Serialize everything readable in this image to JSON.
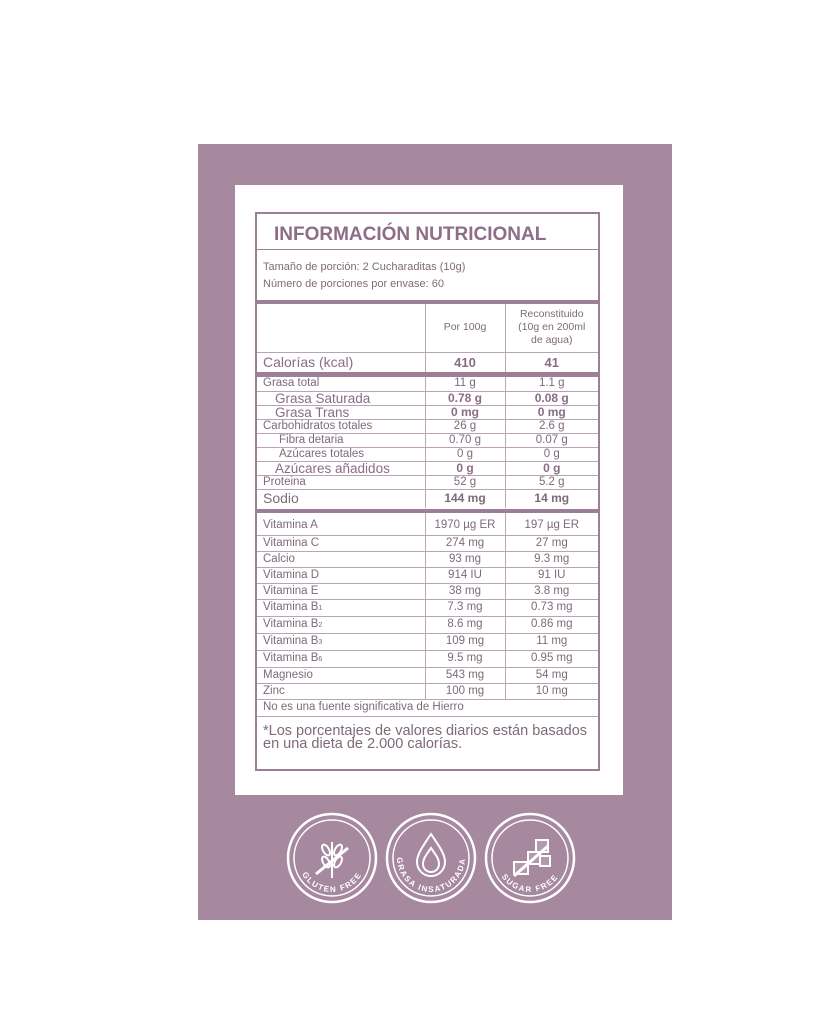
{
  "title": "INFORMACIÓN NUTRICIONAL",
  "serving_size": "Tamaño de porción: 2 Cucharaditas (10g)",
  "servings_per_container": "Número de porciones por envase: 60",
  "columns": {
    "per100": "Por 100g",
    "reconstituted": "Reconstituido (10g en 200ml de agua)"
  },
  "calories": {
    "label": "Calorías (kcal)",
    "per100": "410",
    "reconstituted": "41"
  },
  "nutrients": [
    {
      "label": "Grasa total",
      "per100": "11 g",
      "reconstituted": "1.1 g"
    },
    {
      "label": "Grasa Saturada",
      "per100": "0.78 g",
      "reconstituted": "0.08 g"
    },
    {
      "label": "Grasa Trans",
      "per100": "0 mg",
      "reconstituted": "0 mg"
    },
    {
      "label": "Carbohidratos totales",
      "per100": "26 g",
      "reconstituted": "2.6 g"
    },
    {
      "label": "Fibra detaria",
      "per100": "0.70 g",
      "reconstituted": "0.07 g"
    },
    {
      "label": "Azúcares totales",
      "per100": "0 g",
      "reconstituted": "0 g"
    },
    {
      "label": "Azúcares añadidos",
      "per100": "0 g",
      "reconstituted": "0 g"
    },
    {
      "label": "Proteina",
      "per100": "52 g",
      "reconstituted": "5.2 g"
    },
    {
      "label": "Sodio",
      "per100": "144 mg",
      "reconstituted": "14 mg"
    }
  ],
  "vitamins": [
    {
      "label": "Vitamina A",
      "per100": "1970 µg ER",
      "reconstituted": "197 µg ER"
    },
    {
      "label": "Vitamina C",
      "per100": "274 mg",
      "reconstituted": "27 mg"
    },
    {
      "label": "Calcio",
      "per100": "93 mg",
      "reconstituted": "9.3 mg"
    },
    {
      "label": "Vitamina D",
      "per100": "914 IU",
      "reconstituted": "91 IU"
    },
    {
      "label": "Vitamina E",
      "per100": "38 mg",
      "reconstituted": "3.8 mg"
    },
    {
      "label": "Vitamina B",
      "sub": "1",
      "per100": "7.3 mg",
      "reconstituted": "0.73 mg"
    },
    {
      "label": "Vitamina B",
      "sub": "2",
      "per100": "8.6 mg",
      "reconstituted": "0.86 mg"
    },
    {
      "label": "Vitamina B",
      "sub": "3",
      "per100": "109 mg",
      "reconstituted": "11 mg"
    },
    {
      "label": "Vitamina B",
      "sub": "6",
      "per100": "9.5 mg",
      "reconstituted": "0.95 mg"
    },
    {
      "label": "Magnesio",
      "per100": "543 mg",
      "reconstituted": "54 mg"
    },
    {
      "label": "Zinc",
      "per100": "100 mg",
      "reconstituted": "10 mg"
    }
  ],
  "iron_note": "No es una fuente significativa de Hierro",
  "footnote": "*Los porcentajes de valores diarios están basados en una dieta de 2.000 calorías.",
  "badges": [
    {
      "label": "GLUTEN FREE",
      "icon": "wheat-crossed-icon"
    },
    {
      "label": "GRASA INSATURADA",
      "icon": "drop-icon"
    },
    {
      "label": "SUGAR FREE",
      "icon": "sugar-cubes-crossed-icon"
    }
  ],
  "colors": {
    "panel": "#a6889f",
    "text": "#8a6c86",
    "border": "#9c7f96"
  }
}
